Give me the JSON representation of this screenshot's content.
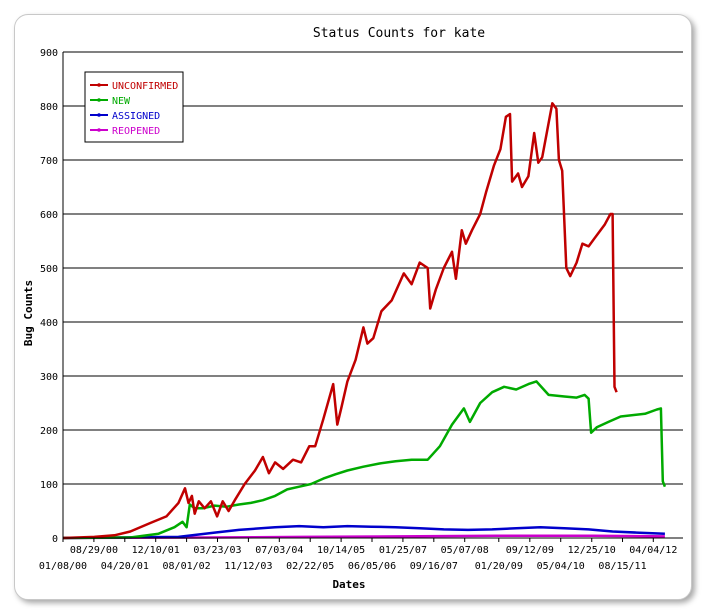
{
  "chart_data": {
    "type": "line",
    "title": "Status Counts for kate",
    "xlabel": "Dates",
    "ylabel": "Bug Counts",
    "ylim": [
      0,
      900
    ],
    "yticks": [
      0,
      100,
      200,
      300,
      400,
      500,
      600,
      700,
      800,
      900
    ],
    "xlim": [
      "01/08/00",
      "11/15/12"
    ],
    "xticks_upper": [
      "08/29/00",
      "12/10/01",
      "03/23/03",
      "07/03/04",
      "10/14/05",
      "01/25/07",
      "05/07/08",
      "09/12/09",
      "12/25/10",
      "04/04/12"
    ],
    "xticks_lower": [
      "01/08/00",
      "04/20/01",
      "08/01/02",
      "11/12/03",
      "02/22/05",
      "06/05/06",
      "09/16/07",
      "01/20/09",
      "05/04/10",
      "08/15/11"
    ],
    "grid": "horizontal",
    "legend_position": "top-left",
    "colors": {
      "UNCONFIRMED": "#c00000",
      "NEW": "#00aa00",
      "ASSIGNED": "#0000cc",
      "REOPENED": "#cc00cc"
    },
    "series": [
      {
        "name": "UNCONFIRMED",
        "points": [
          [
            "01/08/00",
            0
          ],
          [
            "09/01/00",
            2
          ],
          [
            "02/01/01",
            5
          ],
          [
            "06/01/01",
            12
          ],
          [
            "11/01/01",
            28
          ],
          [
            "03/01/02",
            40
          ],
          [
            "06/01/02",
            65
          ],
          [
            "07/20/02",
            92
          ],
          [
            "08/15/02",
            65
          ],
          [
            "09/10/02",
            78
          ],
          [
            "10/01/02",
            45
          ],
          [
            "11/01/02",
            68
          ],
          [
            "12/15/02",
            55
          ],
          [
            "02/01/03",
            68
          ],
          [
            "03/20/03",
            40
          ],
          [
            "05/01/03",
            68
          ],
          [
            "06/15/03",
            50
          ],
          [
            "08/01/03",
            70
          ],
          [
            "10/15/03",
            100
          ],
          [
            "01/01/04",
            125
          ],
          [
            "03/01/04",
            150
          ],
          [
            "04/15/04",
            120
          ],
          [
            "06/01/04",
            140
          ],
          [
            "08/01/04",
            128
          ],
          [
            "10/15/04",
            145
          ],
          [
            "12/15/04",
            140
          ],
          [
            "02/15/05",
            170
          ],
          [
            "04/01/05",
            170
          ],
          [
            "06/01/05",
            220
          ],
          [
            "08/15/05",
            285
          ],
          [
            "09/15/05",
            210
          ],
          [
            "10/15/05",
            240
          ],
          [
            "12/01/05",
            290
          ],
          [
            "02/01/06",
            330
          ],
          [
            "04/01/06",
            390
          ],
          [
            "05/01/06",
            360
          ],
          [
            "06/15/06",
            370
          ],
          [
            "08/15/06",
            420
          ],
          [
            "11/01/06",
            440
          ],
          [
            "02/01/07",
            490
          ],
          [
            "04/01/07",
            470
          ],
          [
            "06/01/07",
            510
          ],
          [
            "08/01/07",
            500
          ],
          [
            "08/20/07",
            425
          ],
          [
            "10/01/07",
            460
          ],
          [
            "12/01/07",
            500
          ],
          [
            "02/01/08",
            530
          ],
          [
            "03/01/08",
            480
          ],
          [
            "04/15/08",
            570
          ],
          [
            "05/15/08",
            545
          ],
          [
            "07/01/08",
            570
          ],
          [
            "09/01/08",
            600
          ],
          [
            "10/15/08",
            640
          ],
          [
            "12/15/08",
            690
          ],
          [
            "02/01/09",
            720
          ],
          [
            "03/15/09",
            780
          ],
          [
            "04/15/09",
            785
          ],
          [
            "05/01/09",
            660
          ],
          [
            "06/15/09",
            675
          ],
          [
            "07/15/09",
            650
          ],
          [
            "09/01/09",
            670
          ],
          [
            "10/15/09",
            750
          ],
          [
            "11/15/09",
            695
          ],
          [
            "12/15/09",
            705
          ],
          [
            "03/01/10",
            805
          ],
          [
            "04/01/10",
            795
          ],
          [
            "04/20/10",
            700
          ],
          [
            "05/15/10",
            680
          ],
          [
            "06/15/10",
            500
          ],
          [
            "07/15/10",
            485
          ],
          [
            "09/01/10",
            510
          ],
          [
            "10/15/10",
            545
          ],
          [
            "12/01/10",
            540
          ],
          [
            "01/15/11",
            555
          ],
          [
            "03/01/11",
            570
          ],
          [
            "04/01/11",
            580
          ],
          [
            "05/15/11",
            600
          ],
          [
            "06/01/11",
            600
          ],
          [
            "06/15/11",
            280
          ],
          [
            "07/01/11",
            270
          ]
        ]
      },
      {
        "name": "NEW",
        "points": [
          [
            "01/08/00",
            0
          ],
          [
            "06/01/01",
            1
          ],
          [
            "01/01/02",
            8
          ],
          [
            "05/01/02",
            20
          ],
          [
            "07/01/02",
            30
          ],
          [
            "08/01/02",
            20
          ],
          [
            "08/25/02",
            62
          ],
          [
            "10/01/02",
            55
          ],
          [
            "12/01/02",
            55
          ],
          [
            "03/01/03",
            60
          ],
          [
            "06/01/03",
            58
          ],
          [
            "09/01/03",
            62
          ],
          [
            "12/01/03",
            65
          ],
          [
            "03/01/04",
            70
          ],
          [
            "06/01/04",
            78
          ],
          [
            "09/01/04",
            90
          ],
          [
            "12/01/04",
            95
          ],
          [
            "03/01/05",
            100
          ],
          [
            "06/01/05",
            110
          ],
          [
            "09/01/05",
            118
          ],
          [
            "12/01/05",
            125
          ],
          [
            "04/01/06",
            132
          ],
          [
            "08/01/06",
            138
          ],
          [
            "12/01/06",
            142
          ],
          [
            "04/01/07",
            145
          ],
          [
            "08/01/07",
            145
          ],
          [
            "11/01/07",
            170
          ],
          [
            "02/01/08",
            210
          ],
          [
            "05/01/08",
            240
          ],
          [
            "06/15/08",
            215
          ],
          [
            "09/01/08",
            250
          ],
          [
            "12/01/08",
            270
          ],
          [
            "03/01/09",
            280
          ],
          [
            "06/01/09",
            275
          ],
          [
            "09/01/09",
            285
          ],
          [
            "11/01/09",
            290
          ],
          [
            "02/01/10",
            265
          ],
          [
            "06/01/10",
            262
          ],
          [
            "09/01/10",
            260
          ],
          [
            "11/01/10",
            265
          ],
          [
            "12/01/10",
            258
          ],
          [
            "12/20/10",
            195
          ],
          [
            "02/01/11",
            205
          ],
          [
            "05/01/11",
            215
          ],
          [
            "08/01/11",
            225
          ],
          [
            "02/01/12",
            230
          ],
          [
            "05/01/12",
            238
          ],
          [
            "06/01/12",
            240
          ],
          [
            "06/15/12",
            105
          ],
          [
            "07/01/12",
            95
          ]
        ]
      },
      {
        "name": "ASSIGNED",
        "points": [
          [
            "01/08/00",
            0
          ],
          [
            "06/01/02",
            2
          ],
          [
            "03/01/03",
            10
          ],
          [
            "09/01/03",
            15
          ],
          [
            "06/01/04",
            20
          ],
          [
            "12/01/04",
            22
          ],
          [
            "06/01/05",
            20
          ],
          [
            "12/01/05",
            22
          ],
          [
            "06/01/06",
            21
          ],
          [
            "12/01/06",
            20
          ],
          [
            "06/01/07",
            18
          ],
          [
            "12/01/07",
            16
          ],
          [
            "06/01/08",
            15
          ],
          [
            "12/01/08",
            16
          ],
          [
            "06/01/09",
            18
          ],
          [
            "12/01/09",
            20
          ],
          [
            "06/01/10",
            18
          ],
          [
            "12/01/10",
            16
          ],
          [
            "06/01/11",
            12
          ],
          [
            "12/01/11",
            10
          ],
          [
            "07/01/12",
            8
          ]
        ]
      },
      {
        "name": "REOPENED",
        "points": [
          [
            "01/08/00",
            0
          ],
          [
            "01/01/03",
            1
          ],
          [
            "01/01/05",
            2
          ],
          [
            "01/01/07",
            3
          ],
          [
            "01/01/09",
            4
          ],
          [
            "01/01/11",
            4
          ],
          [
            "07/01/12",
            3
          ]
        ]
      }
    ]
  }
}
